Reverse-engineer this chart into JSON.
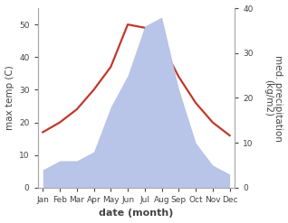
{
  "months": [
    "Jan",
    "Feb",
    "Mar",
    "Apr",
    "May",
    "Jun",
    "Jul",
    "Aug",
    "Sep",
    "Oct",
    "Nov",
    "Dec"
  ],
  "month_indices": [
    0,
    1,
    2,
    3,
    4,
    5,
    6,
    7,
    8,
    9,
    10,
    11
  ],
  "temperature": [
    17,
    20,
    24,
    30,
    37,
    50,
    49,
    44,
    34,
    26,
    20,
    16
  ],
  "precipitation": [
    4,
    6,
    6,
    8,
    18,
    25,
    36,
    38,
    22,
    10,
    5,
    3
  ],
  "temp_color": "#c0392b",
  "precip_fill_color": "#b8c4e8",
  "temp_ylim": [
    0,
    55
  ],
  "precip_ylim": [
    0,
    40
  ],
  "temp_yticks": [
    0,
    10,
    20,
    30,
    40,
    50
  ],
  "precip_yticks": [
    0,
    10,
    20,
    30,
    40
  ],
  "xlabel": "date (month)",
  "ylabel_left": "max temp (C)",
  "ylabel_right": "med. precipitation\n(kg/m2)",
  "figsize": [
    3.18,
    2.47
  ],
  "dpi": 100,
  "bg_color": "#ffffff",
  "spine_color": "#aaaaaa",
  "tick_color": "#444444",
  "label_fontsize": 7.5,
  "tick_fontsize": 6.5
}
